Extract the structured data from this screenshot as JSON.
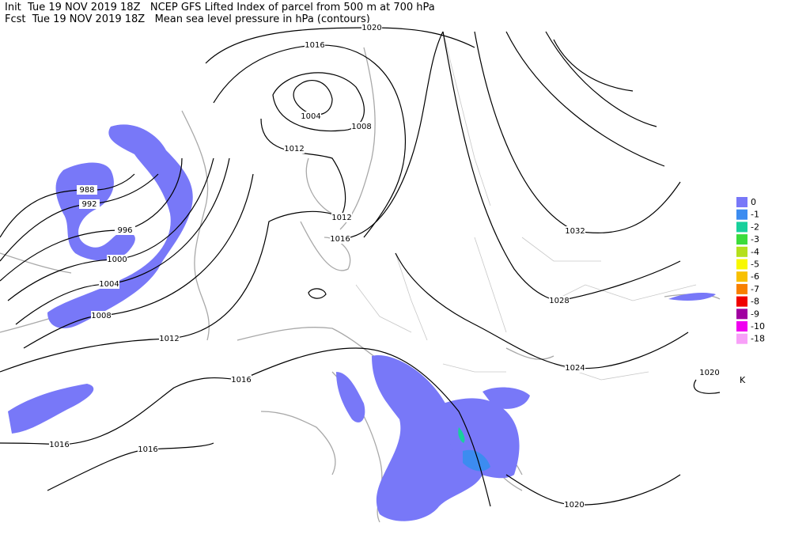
{
  "header": {
    "line1": "Init  Tue 19 NOV 2019 18Z   NCEP GFS Lifted Index of parcel from 500 m at 700 hPa",
    "line2": "Fcst  Tue 19 NOV 2019 18Z   Mean sea level pressure in hPa (contours)"
  },
  "contours": {
    "labels": [
      "1020",
      "1016",
      "1004",
      "1008",
      "1012",
      "988",
      "992",
      "996",
      "1000",
      "1004",
      "1008",
      "1012",
      "1016",
      "1012",
      "1016",
      "1032",
      "1028",
      "1024",
      "1020",
      "1016",
      "1016",
      "1020"
    ]
  },
  "legend": {
    "items": [
      {
        "label": "0",
        "color": "#7878f8"
      },
      {
        "label": "-1",
        "color": "#3c8cf0"
      },
      {
        "label": "-2",
        "color": "#18d09c"
      },
      {
        "label": "-3",
        "color": "#3cdc3c"
      },
      {
        "label": "-4",
        "color": "#b4e01c"
      },
      {
        "label": "-5",
        "color": "#f8f800"
      },
      {
        "label": "-6",
        "color": "#f8c000"
      },
      {
        "label": "-7",
        "color": "#f88000"
      },
      {
        "label": "-8",
        "color": "#f00000"
      },
      {
        "label": "-9",
        "color": "#a000a0"
      },
      {
        "label": "-10",
        "color": "#f000f0"
      },
      {
        "label": "-18",
        "color": "#f8a0f8"
      }
    ],
    "unit": "K"
  }
}
